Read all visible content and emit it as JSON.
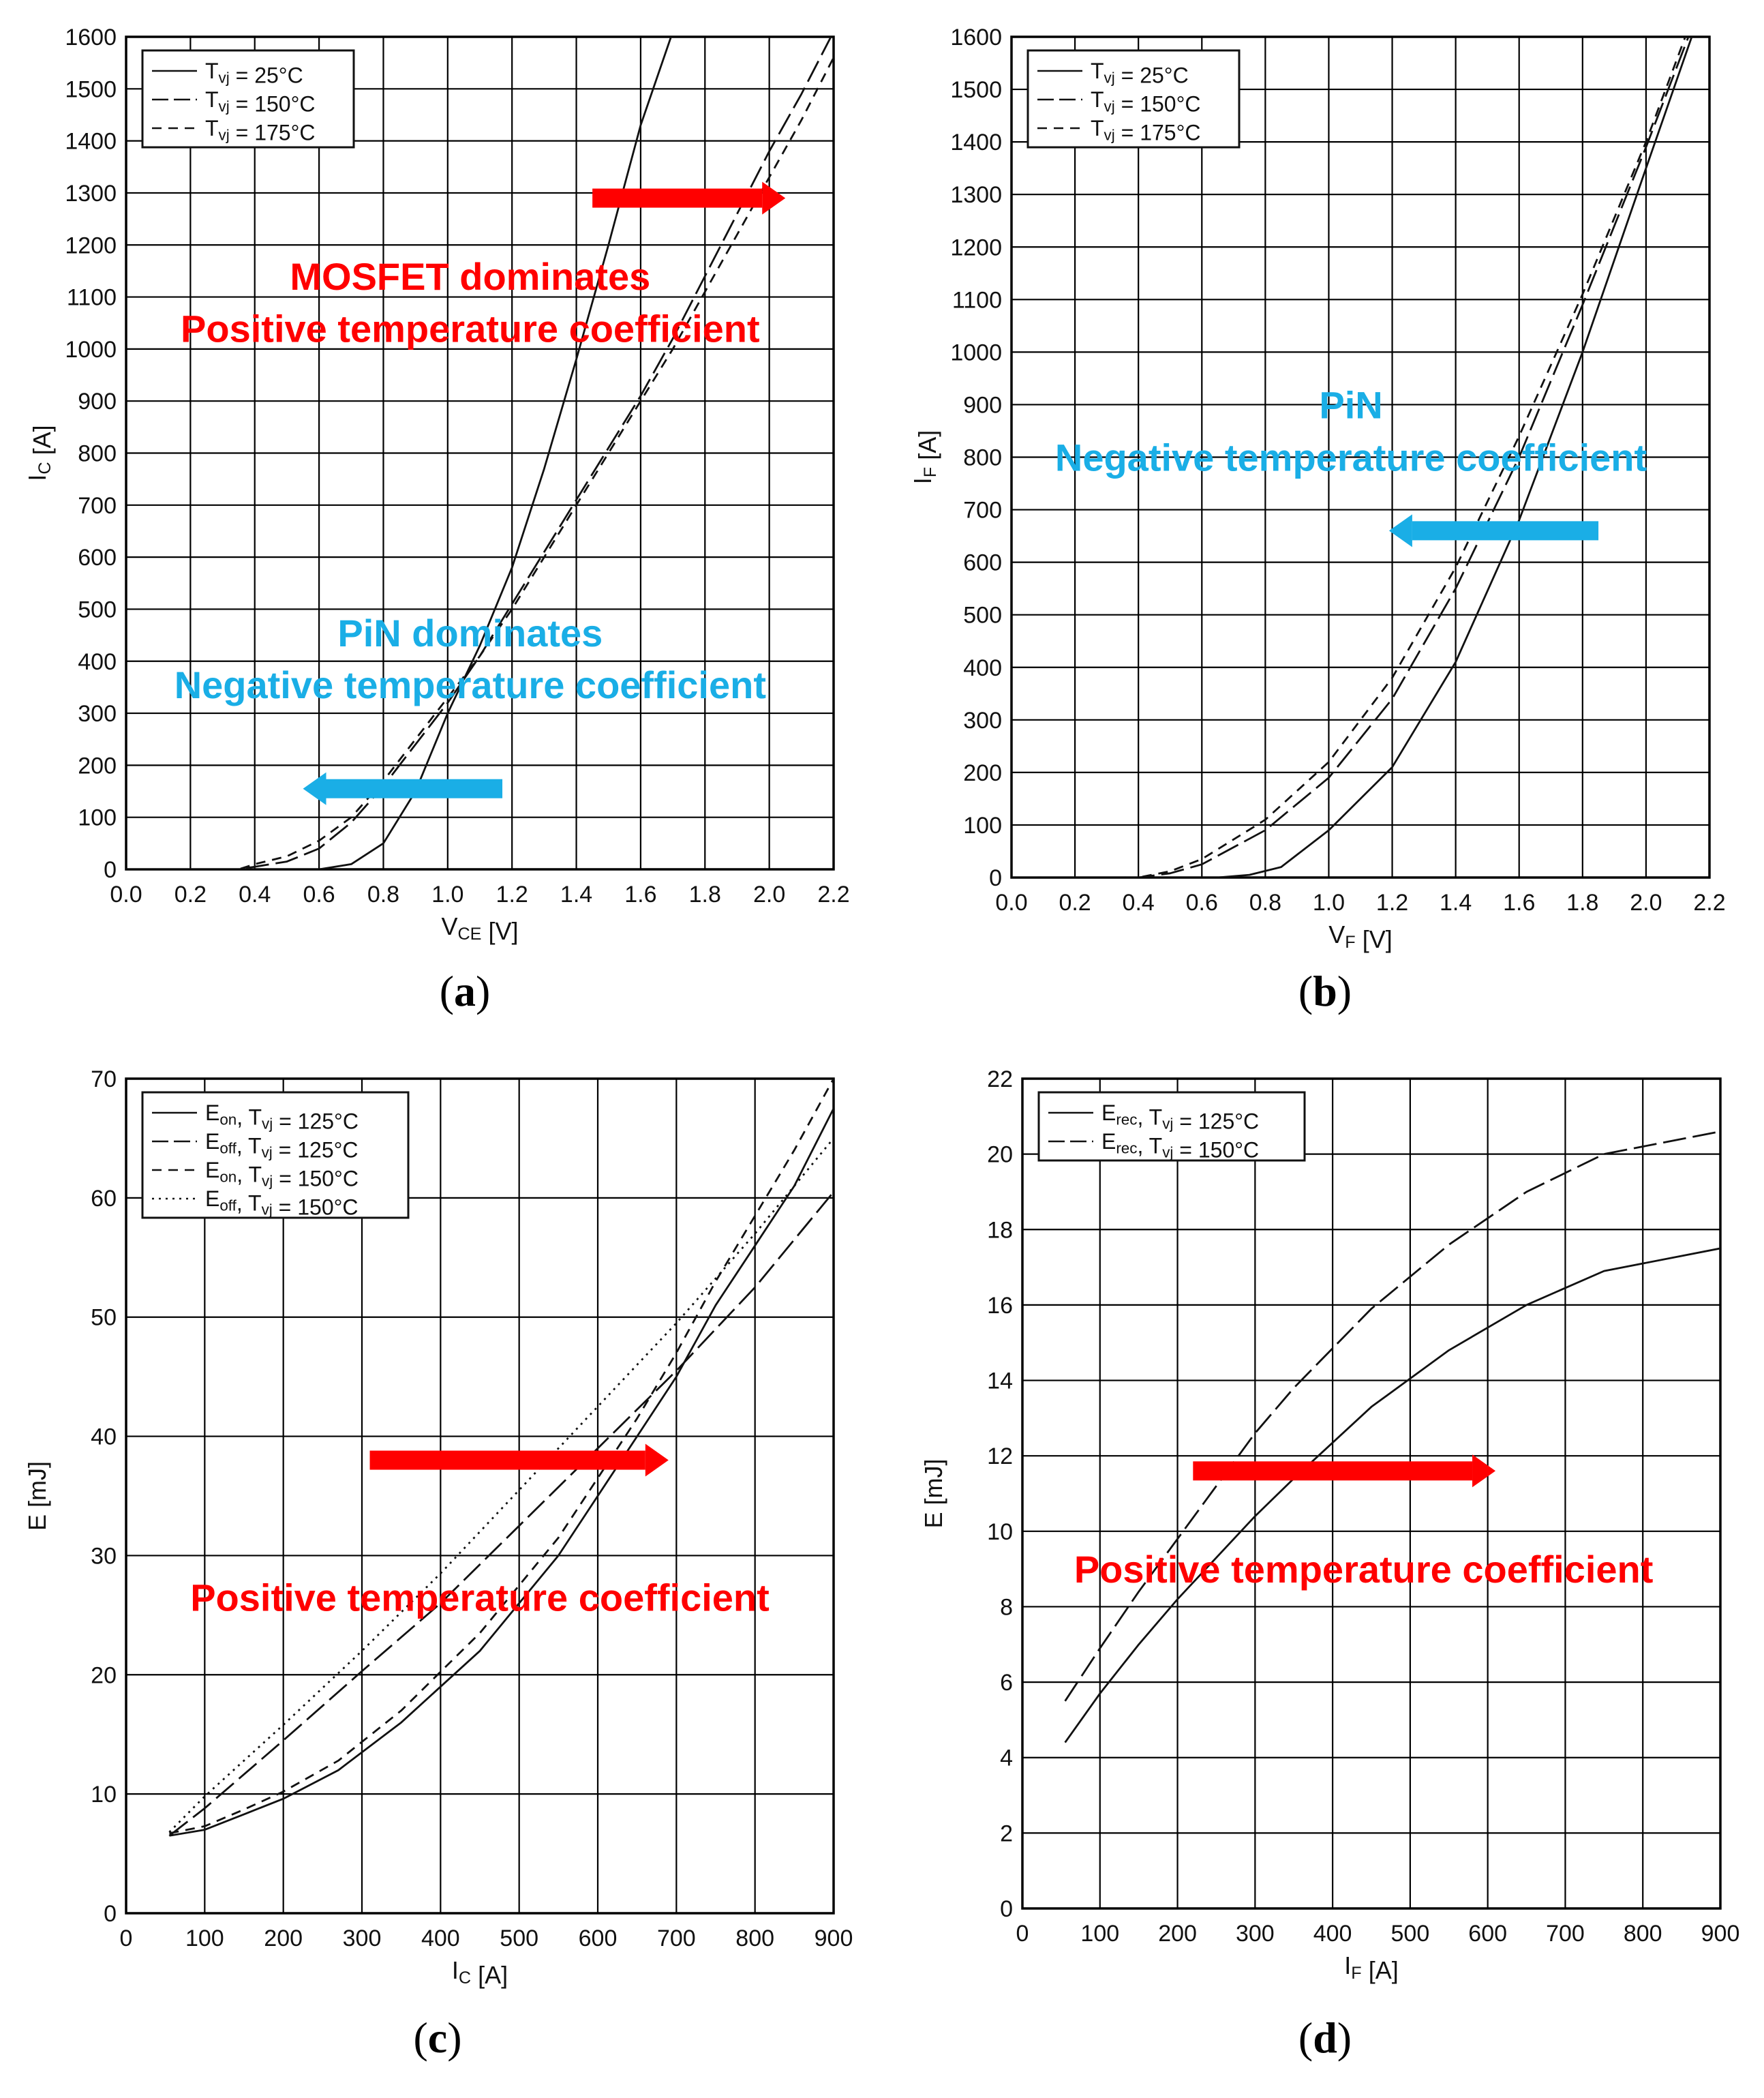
{
  "figure": {
    "colors": {
      "red": "#ff0000",
      "blue": "#1aaee6",
      "ink": "#111111",
      "grid": "#000000"
    }
  },
  "chart_data": [
    {
      "id": "a",
      "type": "line",
      "caption": "(a)",
      "xlabel": "V",
      "xlabel_sub": "CE",
      "xlabel_unit": " [V]",
      "ylabel": "I",
      "ylabel_sub": "C",
      "ylabel_unit": " [A]",
      "xlim": [
        0,
        2.2
      ],
      "ylim": [
        0,
        1600
      ],
      "xticks": [
        0.0,
        0.2,
        0.4,
        0.6,
        0.8,
        1.0,
        1.2,
        1.4,
        1.6,
        1.8,
        2.0,
        2.2
      ],
      "yticks": [
        0,
        100,
        200,
        300,
        400,
        500,
        600,
        700,
        800,
        900,
        1000,
        1100,
        1200,
        1300,
        1400,
        1500,
        1600
      ],
      "xtick_decimals": 1,
      "grid": true,
      "legend_location": "top-left",
      "series": [
        {
          "pre": "T",
          "sub": "vj",
          "post": " = 25°C",
          "dash": "solid",
          "x": [
            0.0,
            0.6,
            0.7,
            0.8,
            0.9,
            1.0,
            1.1,
            1.2,
            1.3,
            1.4,
            1.5,
            1.6,
            1.7
          ],
          "y": [
            0,
            0,
            10,
            50,
            150,
            300,
            430,
            580,
            770,
            980,
            1200,
            1430,
            1610
          ]
        },
        {
          "pre": "T",
          "sub": "vj",
          "post": " = 150°C",
          "dash": "long",
          "x": [
            0.0,
            0.35,
            0.4,
            0.5,
            0.6,
            0.7,
            0.8,
            0.9,
            1.0,
            1.1,
            1.2,
            1.3,
            1.4,
            1.5,
            1.6,
            1.7,
            1.8,
            1.9,
            2.0,
            2.1,
            2.2
          ],
          "y": [
            0,
            0,
            5,
            15,
            40,
            90,
            160,
            240,
            320,
            410,
            510,
            610,
            710,
            810,
            910,
            1020,
            1140,
            1260,
            1380,
            1490,
            1610
          ]
        },
        {
          "pre": "T",
          "sub": "vj",
          "post": " = 175°C",
          "dash": "short",
          "x": [
            0.0,
            0.35,
            0.4,
            0.5,
            0.6,
            0.7,
            0.8,
            0.9,
            1.0,
            1.1,
            1.2,
            1.3,
            1.4,
            1.5,
            1.6,
            1.7,
            1.8,
            1.9,
            2.0,
            2.1,
            2.2
          ],
          "y": [
            0,
            0,
            10,
            25,
            55,
            100,
            170,
            250,
            330,
            410,
            500,
            600,
            700,
            800,
            900,
            1000,
            1110,
            1220,
            1330,
            1440,
            1560
          ]
        }
      ],
      "annotations": [
        {
          "text": "MOSFET dominates",
          "color": "red",
          "x": 1.07,
          "y": 1140
        },
        {
          "text": "Positive temperature coefficient",
          "color": "red",
          "x": 1.07,
          "y": 1040
        },
        {
          "text": "PiN dominates",
          "color": "blue",
          "x": 1.07,
          "y": 455
        },
        {
          "text": "Negative temperature coefficient",
          "color": "blue",
          "x": 1.07,
          "y": 355
        }
      ],
      "arrows": [
        {
          "color": "red",
          "from": [
            1.45,
            1290
          ],
          "to": [
            2.05,
            1290
          ]
        },
        {
          "color": "blue",
          "from": [
            1.17,
            155
          ],
          "to": [
            0.55,
            155
          ]
        }
      ]
    },
    {
      "id": "b",
      "type": "line",
      "caption": "(b)",
      "xlabel": "V",
      "xlabel_sub": "F",
      "xlabel_unit": " [V]",
      "ylabel": "I",
      "ylabel_sub": "F",
      "ylabel_unit": " [A]",
      "xlim": [
        0,
        2.2
      ],
      "ylim": [
        0,
        1600
      ],
      "xticks": [
        0.0,
        0.2,
        0.4,
        0.6,
        0.8,
        1.0,
        1.2,
        1.4,
        1.6,
        1.8,
        2.0,
        2.2
      ],
      "yticks": [
        0,
        100,
        200,
        300,
        400,
        500,
        600,
        700,
        800,
        900,
        1000,
        1100,
        1200,
        1300,
        1400,
        1500,
        1600
      ],
      "xtick_decimals": 1,
      "grid": true,
      "legend_location": "top-left",
      "series": [
        {
          "pre": "T",
          "sub": "vj",
          "post": " = 25°C",
          "dash": "solid",
          "x": [
            0.0,
            0.65,
            0.75,
            0.85,
            1.0,
            1.2,
            1.4,
            1.6,
            1.8,
            2.0,
            2.15
          ],
          "y": [
            0,
            0,
            5,
            20,
            90,
            210,
            410,
            680,
            1000,
            1350,
            1610
          ]
        },
        {
          "pre": "T",
          "sub": "vj",
          "post": " = 150°C",
          "dash": "long",
          "x": [
            0.0,
            0.4,
            0.5,
            0.6,
            0.8,
            1.0,
            1.2,
            1.4,
            1.6,
            1.8,
            2.0,
            2.14
          ],
          "y": [
            0,
            0,
            8,
            25,
            90,
            190,
            340,
            550,
            800,
            1090,
            1390,
            1610
          ]
        },
        {
          "pre": "T",
          "sub": "vj",
          "post": " = 175°C",
          "dash": "short",
          "x": [
            0.0,
            0.4,
            0.5,
            0.6,
            0.8,
            1.0,
            1.2,
            1.4,
            1.6,
            1.8,
            2.0,
            2.13
          ],
          "y": [
            0,
            0,
            12,
            35,
            110,
            220,
            380,
            590,
            840,
            1110,
            1400,
            1610
          ]
        }
      ],
      "annotations": [
        {
          "text": "PiN",
          "color": "blue",
          "x": 1.07,
          "y": 900
        },
        {
          "text": "Negative temperature coefficient",
          "color": "blue",
          "x": 1.07,
          "y": 800
        }
      ],
      "arrows": [
        {
          "color": "blue",
          "from": [
            1.85,
            660
          ],
          "to": [
            1.19,
            660
          ]
        }
      ]
    },
    {
      "id": "c",
      "type": "line",
      "caption": "(c)",
      "xlabel": "I",
      "xlabel_sub": "C",
      "xlabel_unit": " [A]",
      "ylabel": "E [mJ]",
      "ylabel_sub": "",
      "ylabel_unit": "",
      "xlim": [
        0,
        900
      ],
      "ylim": [
        0,
        70
      ],
      "xticks": [
        0,
        100,
        200,
        300,
        400,
        500,
        600,
        700,
        800,
        900
      ],
      "yticks": [
        0,
        10,
        20,
        30,
        40,
        50,
        60,
        70
      ],
      "xtick_decimals": 0,
      "grid": true,
      "legend_location": "top-left",
      "series": [
        {
          "pre": "E",
          "sub": "on",
          "post": ", T",
          "sub2": "vj",
          "post2": " = 125°C",
          "dash": "solid",
          "x": [
            55,
            100,
            150,
            200,
            270,
            350,
            450,
            550,
            600,
            650,
            700,
            750,
            800,
            850,
            900
          ],
          "y": [
            6.5,
            7.0,
            8.3,
            9.6,
            12,
            16,
            22,
            30,
            35,
            40,
            45,
            51,
            56,
            61,
            67.5
          ]
        },
        {
          "pre": "E",
          "sub": "off",
          "post": ", T",
          "sub2": "vj",
          "post2": " = 125°C",
          "dash": "long",
          "x": [
            55,
            100,
            200,
            300,
            400,
            500,
            600,
            700,
            800,
            900
          ],
          "y": [
            6.5,
            8.8,
            14.5,
            20.3,
            26,
            32.5,
            39,
            45.5,
            52.5,
            60.5
          ]
        },
        {
          "pre": "E",
          "sub": "on",
          "post": ", T",
          "sub2": "vj",
          "post2": " = 150°C",
          "dash": "short",
          "x": [
            55,
            100,
            150,
            200,
            270,
            350,
            450,
            550,
            600,
            650,
            700,
            750,
            800,
            850,
            900
          ],
          "y": [
            6.7,
            7.3,
            8.7,
            10.2,
            12.8,
            17,
            23.5,
            31.5,
            36.5,
            41.5,
            47,
            53,
            58.5,
            64,
            70
          ]
        },
        {
          "pre": "E",
          "sub": "off",
          "post": ", T",
          "sub2": "vj",
          "post2": " = 150°C",
          "dash": "dot",
          "x": [
            55,
            100,
            200,
            300,
            400,
            500,
            600,
            700,
            800,
            900
          ],
          "y": [
            6.8,
            9.8,
            15.8,
            22,
            28.5,
            35.5,
            42.5,
            49.5,
            57,
            65
          ]
        }
      ],
      "annotations": [
        {
          "text": "Positive temperature coefficient",
          "color": "red",
          "x": 450,
          "y": 26.5
        }
      ],
      "arrows": [
        {
          "color": "red",
          "from": [
            310,
            38
          ],
          "to": [
            690,
            38
          ]
        }
      ]
    },
    {
      "id": "d",
      "type": "line",
      "caption": "(d)",
      "xlabel": "I",
      "xlabel_sub": "F",
      "xlabel_unit": " [A]",
      "ylabel": "E [mJ]",
      "ylabel_sub": "",
      "ylabel_unit": "",
      "xlim": [
        0,
        900
      ],
      "ylim": [
        0,
        22
      ],
      "xticks": [
        0,
        100,
        200,
        300,
        400,
        500,
        600,
        700,
        800,
        900
      ],
      "yticks": [
        0,
        2,
        4,
        6,
        8,
        10,
        12,
        14,
        16,
        18,
        20,
        22
      ],
      "xtick_decimals": 0,
      "grid": true,
      "legend_location": "top-left",
      "series": [
        {
          "pre": "E",
          "sub": "rec",
          "post": ", T",
          "sub2": "vj",
          "post2": " = 125°C",
          "dash": "solid",
          "x": [
            55,
            100,
            150,
            200,
            300,
            350,
            450,
            550,
            650,
            750,
            850,
            900
          ],
          "y": [
            4.4,
            5.7,
            7.0,
            8.2,
            10.4,
            11.4,
            13.3,
            14.8,
            16.0,
            16.9,
            17.3,
            17.5
          ]
        },
        {
          "pre": "E",
          "sub": "rec",
          "post": ", T",
          "sub2": "vj",
          "post2": " = 150°C",
          "dash": "long",
          "x": [
            55,
            100,
            150,
            200,
            300,
            350,
            450,
            550,
            650,
            750,
            850,
            900
          ],
          "y": [
            5.5,
            6.9,
            8.4,
            9.8,
            12.6,
            13.8,
            15.9,
            17.6,
            19.0,
            20.0,
            20.4,
            20.6
          ]
        }
      ],
      "annotations": [
        {
          "text": "Positive temperature coefficient",
          "color": "red",
          "x": 440,
          "y": 9.0
        }
      ],
      "arrows": [
        {
          "color": "red",
          "from": [
            220,
            11.6
          ],
          "to": [
            610,
            11.6
          ]
        }
      ]
    }
  ]
}
